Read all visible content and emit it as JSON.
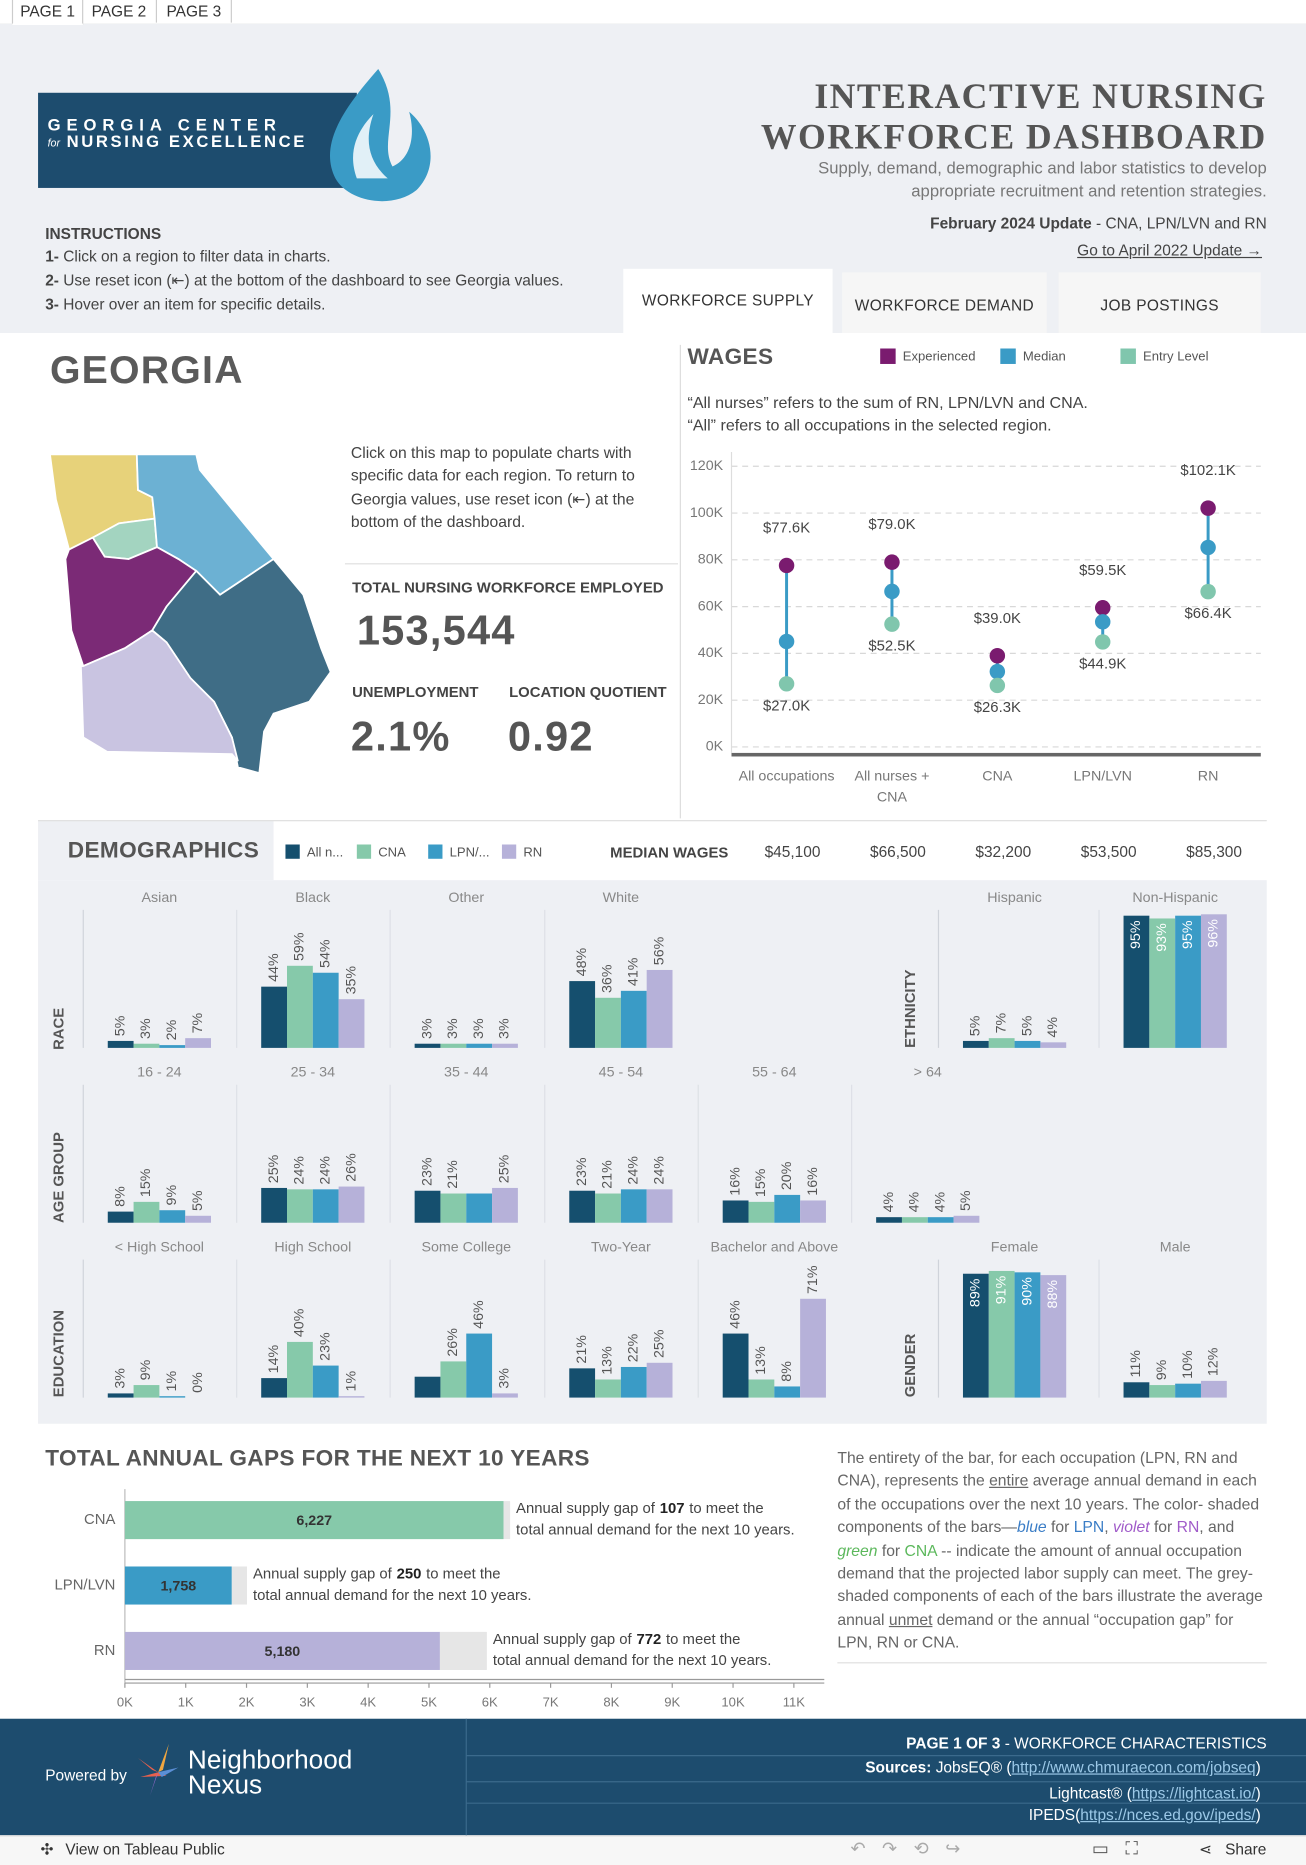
{
  "tabs": [
    "PAGE 1",
    "PAGE 2",
    "PAGE 3"
  ],
  "header": {
    "logo": [
      "GEORGIA CENTER",
      "for",
      "NURSING EXCELLENCE"
    ],
    "title": [
      "INTERACTIVE NURSING",
      "WORKFORCE DASHBOARD"
    ],
    "subtitle": [
      "Supply, demand, demographic and labor statistics to develop",
      "appropriate recruitment and retention strategies."
    ],
    "update": [
      "February 2024 Update",
      "- CNA, LPN/LVN and RN"
    ],
    "link": "Go to April 2022 Update →"
  },
  "instructions": {
    "title": "INSTRUCTIONS",
    "items": [
      [
        "1-",
        "Click on a region to filter data in charts."
      ],
      [
        "2-",
        "Use reset icon (⇤) at the bottom of the dashboard to see Georgia values."
      ],
      [
        "3-",
        "Hover over an item for specific details."
      ]
    ]
  },
  "view_tabs": [
    "WORKFORCE SUPPLY",
    "WORKFORCE DEMAND",
    "JOB POSTINGS"
  ],
  "region": "GEORGIA",
  "map_note": "Click on this map to populate charts with specific data for each region. To return to Georgia values, use reset icon (⇤) at the bottom of the dashboard.",
  "kpis": [
    {
      "label": "TOTAL NURSING WORKFORCE EMPLOYED",
      "value": "153,544"
    },
    {
      "label": "UNEMPLOYMENT",
      "value": "2.1%"
    },
    {
      "label": "LOCATION QUOTIENT",
      "value": "0.92"
    }
  ],
  "chart_data": [
    {
      "type": "dot",
      "title": "WAGES",
      "notes": [
        "“All nurses” refers to the sum of RN, LPN/LVN and CNA.",
        "“All” refers to all occupations in the selected region."
      ],
      "categories": [
        "All occupations",
        "All nurses + CNA",
        "CNA",
        "LPN/LVN",
        "RN"
      ],
      "series": [
        {
          "name": "Experienced",
          "color": "#7a1b6f",
          "values": [
            77600,
            79000,
            39000,
            59500,
            102100
          ],
          "value_labels": [
            "$77.6K",
            "$79.0K",
            "$39.0K",
            "$59.5K",
            "$102.1K"
          ]
        },
        {
          "name": "Median",
          "color": "#3a9bc6",
          "values": [
            45100,
            66500,
            32200,
            53500,
            85300
          ],
          "value_labels": [
            "$45,100",
            "$66,500",
            "$32,200",
            "$53,500",
            "$85,300"
          ]
        },
        {
          "name": "Entry Level",
          "color": "#80c6ad",
          "values": [
            27000,
            52500,
            26300,
            44900,
            66400
          ],
          "value_labels": [
            "$27.0K",
            "$52.5K",
            "$26.3K",
            "$44.9K",
            "$66.4K"
          ]
        }
      ],
      "median_label": "MEDIAN WAGES",
      "ylim": [
        0,
        120000
      ],
      "yticks": [
        {
          "value": 0,
          "label": "0K"
        },
        {
          "value": 20000,
          "label": "20K"
        },
        {
          "value": 40000,
          "label": "40K"
        },
        {
          "value": 60000,
          "label": "60K"
        },
        {
          "value": 80000,
          "label": "80K"
        },
        {
          "value": 100000,
          "label": "100K"
        },
        {
          "value": 120000,
          "label": "120K"
        }
      ],
      "grid": true
    },
    {
      "type": "bar",
      "title": "DEMOGRAPHICS",
      "axis_label": "RACE",
      "categories": [
        "Asian",
        "Black",
        "Other",
        "White"
      ],
      "series": [
        {
          "name": "All n...",
          "color": "#154f6e",
          "values": [
            5,
            44,
            3,
            48
          ],
          "value_labels": [
            "5%",
            "44%",
            "3%",
            "48%"
          ]
        },
        {
          "name": "CNA",
          "color": "#86c9aa",
          "values": [
            3,
            59,
            3,
            36
          ],
          "value_labels": [
            "3%",
            "59%",
            "3%",
            "36%"
          ]
        },
        {
          "name": "LPN/...",
          "color": "#3a9bc6",
          "values": [
            2,
            54,
            3,
            41
          ],
          "value_labels": [
            "2%",
            "54%",
            "3%",
            "41%"
          ]
        },
        {
          "name": "RN",
          "color": "#b6b1d9",
          "values": [
            7,
            35,
            3,
            56
          ],
          "value_labels": [
            "7%",
            "35%",
            "3%",
            "56%"
          ]
        }
      ]
    },
    {
      "type": "bar",
      "axis_label": "ETHNICITY",
      "categories": [
        "Hispanic",
        "Non-Hispanic"
      ],
      "series": [
        {
          "color": "#154f6e",
          "values": [
            5,
            95
          ],
          "value_labels": [
            "5%",
            "95%"
          ]
        },
        {
          "color": "#86c9aa",
          "values": [
            7,
            93
          ],
          "value_labels": [
            "7%",
            "93%"
          ]
        },
        {
          "color": "#3a9bc6",
          "values": [
            5,
            95
          ],
          "value_labels": [
            "5%",
            "95%"
          ]
        },
        {
          "color": "#b6b1d9",
          "values": [
            4,
            96
          ],
          "value_labels": [
            "4%",
            "96%"
          ]
        }
      ]
    },
    {
      "type": "bar",
      "axis_label": "AGE GROUP",
      "categories": [
        "16 - 24",
        "25 - 34",
        "35 - 44",
        "45 - 54",
        "55 - 64",
        "> 64"
      ],
      "series": [
        {
          "color": "#154f6e",
          "values": [
            8,
            25,
            23,
            23,
            16,
            4
          ],
          "value_labels": [
            "8%",
            "25%",
            "23%",
            "23%",
            "16%",
            "4%"
          ]
        },
        {
          "color": "#86c9aa",
          "values": [
            15,
            24,
            21,
            21,
            15,
            4
          ],
          "value_labels": [
            "15%",
            "24%",
            "21%",
            "21%",
            "15%",
            "4%"
          ]
        },
        {
          "color": "#3a9bc6",
          "values": [
            9,
            24,
            21,
            24,
            20,
            4
          ],
          "value_labels": [
            "9%",
            "24%",
            null,
            "24%",
            "20%",
            "4%"
          ]
        },
        {
          "color": "#b6b1d9",
          "values": [
            5,
            26,
            25,
            24,
            16,
            5
          ],
          "value_labels": [
            "5%",
            "26%",
            "25%",
            "24%",
            "16%",
            "5%"
          ]
        }
      ]
    },
    {
      "type": "bar",
      "axis_label": "EDUCATION",
      "categories": [
        "< High School",
        "High School",
        "Some College",
        "Two-Year",
        "Bachelor and Above"
      ],
      "series": [
        {
          "color": "#154f6e",
          "values": [
            3,
            14,
            15,
            21,
            46
          ],
          "value_labels": [
            "3%",
            "14%",
            null,
            "21%",
            "46%"
          ]
        },
        {
          "color": "#86c9aa",
          "values": [
            9,
            40,
            26,
            13,
            13
          ],
          "value_labels": [
            "9%",
            "40%",
            "26%",
            "13%",
            "13%"
          ]
        },
        {
          "color": "#3a9bc6",
          "values": [
            1,
            23,
            46,
            22,
            8
          ],
          "value_labels": [
            "1%",
            "23%",
            "46%",
            "22%",
            "8%"
          ]
        },
        {
          "color": "#b6b1d9",
          "values": [
            0,
            1,
            3,
            25,
            71
          ],
          "value_labels": [
            "0%",
            "1%",
            "3%",
            "25%",
            "71%"
          ]
        }
      ]
    },
    {
      "type": "bar",
      "axis_label": "GENDER",
      "categories": [
        "Female",
        "Male"
      ],
      "series": [
        {
          "color": "#154f6e",
          "values": [
            89,
            11
          ],
          "value_labels": [
            "89%",
            "11%"
          ]
        },
        {
          "color": "#86c9aa",
          "values": [
            91,
            9
          ],
          "value_labels": [
            "91%",
            "9%"
          ]
        },
        {
          "color": "#3a9bc6",
          "values": [
            90,
            10
          ],
          "value_labels": [
            "90%",
            "10%"
          ]
        },
        {
          "color": "#b6b1d9",
          "values": [
            88,
            12
          ],
          "value_labels": [
            "88%",
            "12%"
          ]
        }
      ]
    },
    {
      "type": "hbar-stacked",
      "title": "TOTAL ANNUAL GAPS FOR THE NEXT 10 YEARS",
      "categories": [
        "CNA",
        "LPN/LVN",
        "RN"
      ],
      "series": [
        {
          "colors": [
            "#86c9aa",
            "#3a9bc6",
            "#b6b1d9"
          ],
          "values": [
            6227,
            1758,
            5180
          ],
          "value_labels": [
            "6,227",
            "1,758",
            "5,180"
          ]
        },
        {
          "color": "#e6e6e6",
          "values": [
            107,
            250,
            772
          ]
        }
      ],
      "annotation": [
        "Annual supply gap of",
        "to meet the",
        "total annual demand for the next 10 years."
      ],
      "xlim": [
        0,
        11500
      ],
      "xticks": [
        {
          "value": 0,
          "label": "0K"
        },
        {
          "value": 1000,
          "label": "1K"
        },
        {
          "value": 2000,
          "label": "2K"
        },
        {
          "value": 3000,
          "label": "3K"
        },
        {
          "value": 4000,
          "label": "4K"
        },
        {
          "value": 5000,
          "label": "5K"
        },
        {
          "value": 6000,
          "label": "6K"
        },
        {
          "value": 7000,
          "label": "7K"
        },
        {
          "value": 8000,
          "label": "8K"
        },
        {
          "value": 9000,
          "label": "9K"
        },
        {
          "value": 10000,
          "label": "10K"
        },
        {
          "value": 11000,
          "label": "11K"
        }
      ],
      "note": [
        "The entirety of the bar, for each occupation (LPN, RN and CNA),  represents the",
        "entire",
        "average annual demand in each of the occupations over the next 10 years. The color- shaded components of the bars—",
        "blue",
        "for",
        "LPN",
        ",",
        "violet",
        "for",
        "RN",
        ", and",
        "green",
        "for",
        "CNA",
        "-- indicate the amount of annual occupation demand that the projected labor supply can meet. The grey- shaded components of each of the bars illustrate the average annual",
        "unmet",
        "demand or the annual “occupation gap” for LPN, RN or CNA."
      ]
    }
  ],
  "footer": {
    "powered_by": "Powered by",
    "brand": [
      "Neighborhood",
      "Nexus"
    ],
    "page": [
      "PAGE 1 OF 3",
      "- WORKFORCE CHARACTERISTICS"
    ],
    "sources": [
      [
        "Sources:",
        "JobsEQ® (",
        "http://www.chmuraecon.com/jobseq",
        ")"
      ],
      [
        "Lightcast® (",
        "https://lightcast.io/",
        ")"
      ],
      [
        "IPEDS(",
        "https://nces.ed.gov/ipeds/",
        ")"
      ]
    ]
  },
  "toolbar": {
    "view": "View on Tableau Public",
    "share": "Share"
  }
}
